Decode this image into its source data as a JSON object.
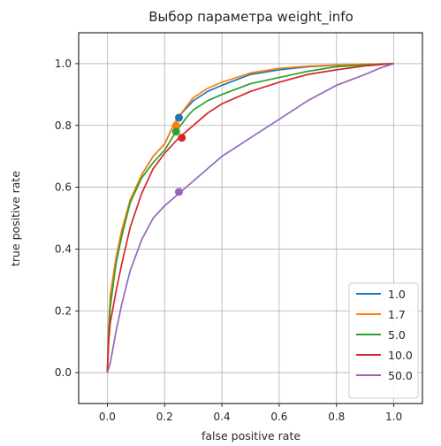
{
  "chart_data": {
    "type": "line",
    "title": "Выбор параметра weight_info",
    "xlabel": "false positive rate",
    "ylabel": "true positive rate",
    "xlim": [
      -0.1,
      1.1
    ],
    "ylim": [
      -0.1,
      1.1
    ],
    "xticks": [
      "0.0",
      "0.2",
      "0.4",
      "0.6",
      "0.8",
      "1.0"
    ],
    "yticks": [
      "0.0",
      "0.2",
      "0.4",
      "0.6",
      "0.8",
      "1.0"
    ],
    "grid": true,
    "legend_position": "lower-right",
    "series": [
      {
        "name": "1.0",
        "color": "#1f77b4",
        "x": [
          0,
          0.005,
          0.01,
          0.02,
          0.03,
          0.05,
          0.08,
          0.12,
          0.16,
          0.2,
          0.23,
          0.25,
          0.3,
          0.35,
          0.4,
          0.5,
          0.6,
          0.7,
          0.8,
          0.9,
          1.0
        ],
        "y": [
          0,
          0.14,
          0.24,
          0.3,
          0.36,
          0.45,
          0.55,
          0.64,
          0.7,
          0.74,
          0.8,
          0.83,
          0.88,
          0.91,
          0.93,
          0.965,
          0.98,
          0.99,
          0.995,
          0.998,
          1.0
        ],
        "marker": [
          0.25,
          0.825
        ]
      },
      {
        "name": "1.7",
        "color": "#ff7f0e",
        "x": [
          0,
          0.005,
          0.01,
          0.02,
          0.03,
          0.05,
          0.08,
          0.12,
          0.16,
          0.2,
          0.23,
          0.25,
          0.3,
          0.35,
          0.4,
          0.5,
          0.6,
          0.7,
          0.8,
          0.9,
          1.0
        ],
        "y": [
          0,
          0.15,
          0.25,
          0.31,
          0.37,
          0.46,
          0.56,
          0.64,
          0.7,
          0.74,
          0.8,
          0.83,
          0.89,
          0.92,
          0.94,
          0.97,
          0.985,
          0.992,
          0.996,
          0.998,
          1.0
        ],
        "marker": [
          0.24,
          0.8
        ]
      },
      {
        "name": "5.0",
        "color": "#2ca02c",
        "x": [
          0,
          0.005,
          0.01,
          0.02,
          0.03,
          0.05,
          0.08,
          0.12,
          0.16,
          0.2,
          0.24,
          0.28,
          0.3,
          0.35,
          0.4,
          0.5,
          0.6,
          0.7,
          0.8,
          0.9,
          1.0
        ],
        "y": [
          0,
          0.12,
          0.21,
          0.28,
          0.35,
          0.44,
          0.55,
          0.63,
          0.68,
          0.72,
          0.78,
          0.83,
          0.85,
          0.88,
          0.9,
          0.935,
          0.955,
          0.975,
          0.99,
          0.996,
          1.0
        ],
        "marker": [
          0.24,
          0.78
        ]
      },
      {
        "name": "10.0",
        "color": "#d62728",
        "x": [
          0,
          0.005,
          0.01,
          0.02,
          0.03,
          0.05,
          0.08,
          0.12,
          0.16,
          0.2,
          0.25,
          0.3,
          0.35,
          0.4,
          0.5,
          0.6,
          0.7,
          0.8,
          0.9,
          1.0
        ],
        "y": [
          0,
          0.1,
          0.16,
          0.21,
          0.26,
          0.35,
          0.47,
          0.58,
          0.66,
          0.71,
          0.76,
          0.8,
          0.84,
          0.87,
          0.91,
          0.94,
          0.965,
          0.98,
          0.993,
          1.0
        ],
        "marker": [
          0.26,
          0.76
        ]
      },
      {
        "name": "50.0",
        "color": "#9467bd",
        "x": [
          0,
          0.01,
          0.02,
          0.03,
          0.05,
          0.08,
          0.12,
          0.16,
          0.2,
          0.25,
          0.3,
          0.35,
          0.4,
          0.5,
          0.6,
          0.7,
          0.8,
          0.9,
          0.95,
          1.0
        ],
        "y": [
          0,
          0.03,
          0.08,
          0.13,
          0.22,
          0.33,
          0.43,
          0.5,
          0.54,
          0.58,
          0.62,
          0.66,
          0.7,
          0.76,
          0.82,
          0.88,
          0.93,
          0.965,
          0.985,
          1.0
        ],
        "marker": [
          0.25,
          0.585
        ]
      }
    ]
  }
}
